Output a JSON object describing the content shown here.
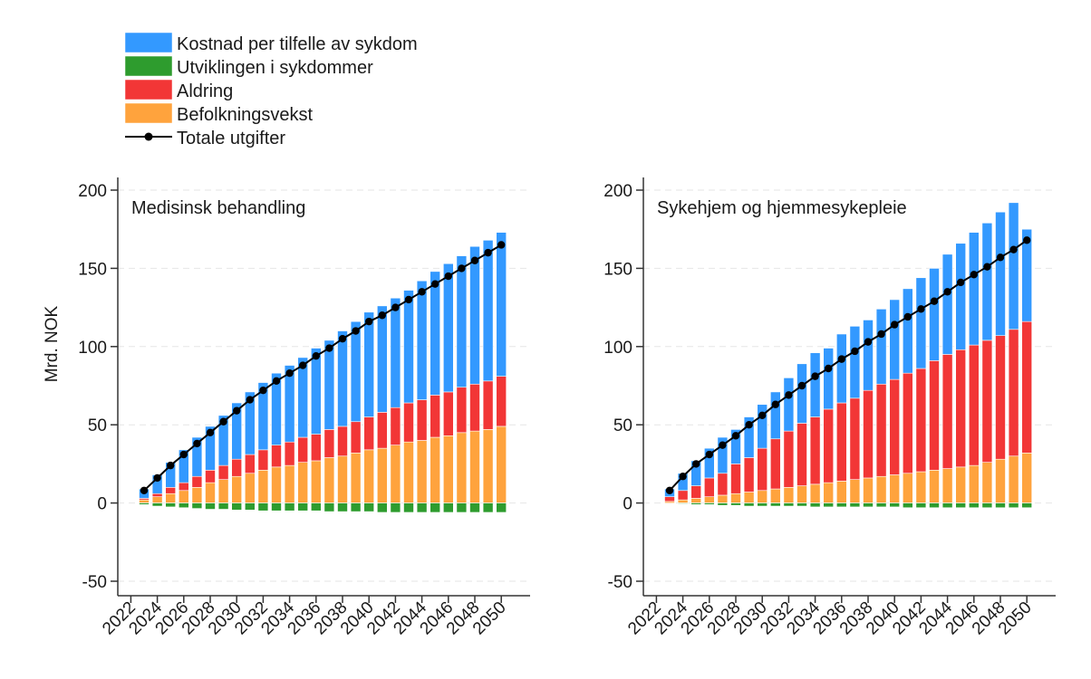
{
  "legend": {
    "items": [
      {
        "key": "cost",
        "label": "Kostnad per tilfelle av sykdom",
        "color": "#3399ff",
        "kind": "box"
      },
      {
        "key": "disease",
        "label": "Utviklingen i sykdommer",
        "color": "#2e9c2e",
        "kind": "box"
      },
      {
        "key": "aging",
        "label": "Aldring",
        "color": "#f23636",
        "kind": "box"
      },
      {
        "key": "pop",
        "label": "Befolkningsvekst",
        "color": "#ffa33d",
        "kind": "box"
      },
      {
        "key": "total",
        "label": "Totale utgifter",
        "color": "#000000",
        "kind": "line"
      }
    ]
  },
  "ylabel": "Mrd. NOK",
  "chart_data": [
    {
      "type": "bar",
      "stacked": true,
      "title": "Medisinsk behandling",
      "ylabel": "Mrd. NOK",
      "ylim": [
        -50,
        200
      ],
      "yticks": [
        -50,
        0,
        50,
        100,
        150,
        200
      ],
      "xtick_labels": [
        "2022",
        "2024",
        "2026",
        "2028",
        "2030",
        "2032",
        "2034",
        "2036",
        "2038",
        "2040",
        "2042",
        "2044",
        "2046",
        "2048",
        "2050"
      ],
      "x": [
        2023,
        2024,
        2025,
        2026,
        2027,
        2028,
        2029,
        2030,
        2031,
        2032,
        2033,
        2034,
        2035,
        2036,
        2037,
        2038,
        2039,
        2040,
        2041,
        2042,
        2043,
        2044,
        2045,
        2046,
        2047,
        2048,
        2049,
        2050
      ],
      "series": [
        {
          "name": "Befolkningsvekst",
          "key": "pop",
          "values": [
            2,
            4,
            6,
            8,
            10,
            13,
            15,
            17,
            19,
            21,
            23,
            24,
            26,
            27,
            29,
            30,
            32,
            34,
            35,
            37,
            39,
            40,
            42,
            43,
            45,
            46,
            47,
            49
          ]
        },
        {
          "name": "Aldring",
          "key": "aging",
          "values": [
            1,
            2,
            4,
            5,
            7,
            8,
            9,
            11,
            12,
            13,
            14,
            15,
            16,
            17,
            18,
            19,
            20,
            21,
            23,
            24,
            25,
            26,
            27,
            28,
            29,
            30,
            31,
            32
          ]
        },
        {
          "name": "Kostnad per tilfelle av sykdom",
          "key": "cost",
          "values": [
            6,
            12,
            16,
            21,
            25,
            28,
            32,
            36,
            40,
            43,
            46,
            49,
            51,
            55,
            57,
            61,
            64,
            67,
            68,
            70,
            72,
            76,
            79,
            82,
            84,
            88,
            90,
            92
          ]
        },
        {
          "name": "Utviklingen i sykdommer",
          "key": "disease",
          "values": [
            -1,
            -2,
            -2.5,
            -3,
            -3.5,
            -4,
            -4,
            -4.5,
            -4.5,
            -5,
            -5,
            -5,
            -5,
            -5,
            -5.5,
            -5.5,
            -5.5,
            -5.5,
            -6,
            -6,
            -6,
            -6,
            -6,
            -6,
            -6,
            -6,
            -6,
            -6
          ]
        }
      ],
      "total": [
        8,
        16,
        24,
        31,
        38,
        45,
        52,
        59,
        66,
        72,
        78,
        83,
        88,
        94,
        99,
        105,
        110,
        116,
        120,
        125,
        130,
        135,
        140,
        145,
        150,
        155,
        160,
        165
      ]
    },
    {
      "type": "bar",
      "stacked": true,
      "title": "Sykehjem og hjemmesykepleie",
      "ylabel": "",
      "ylim": [
        -50,
        200
      ],
      "yticks": [
        -50,
        0,
        50,
        100,
        150,
        200
      ],
      "xtick_labels": [
        "2022",
        "2024",
        "2026",
        "2028",
        "2030",
        "2032",
        "2034",
        "2036",
        "2038",
        "2040",
        "2042",
        "2044",
        "2046",
        "2048",
        "2050"
      ],
      "x": [
        2023,
        2024,
        2025,
        2026,
        2027,
        2028,
        2029,
        2030,
        2031,
        2032,
        2033,
        2034,
        2035,
        2036,
        2037,
        2038,
        2039,
        2040,
        2041,
        2042,
        2043,
        2044,
        2045,
        2046,
        2047,
        2048,
        2049,
        2050
      ],
      "series": [
        {
          "name": "Befolkningsvekst",
          "key": "pop",
          "values": [
            1,
            2,
            3,
            4,
            5,
            6,
            7,
            8,
            9,
            10,
            11,
            12,
            13,
            14,
            15,
            16,
            17,
            18,
            19,
            20,
            21,
            22,
            23,
            24,
            26,
            28,
            30,
            32
          ]
        },
        {
          "name": "Aldring",
          "key": "aging",
          "values": [
            3,
            6,
            8,
            12,
            14,
            19,
            22,
            27,
            32,
            36,
            40,
            43,
            47,
            50,
            52,
            56,
            59,
            61,
            64,
            66,
            70,
            73,
            75,
            77,
            78,
            79,
            81,
            84
          ]
        },
        {
          "name": "Kostnad per tilfelle av sykdom",
          "key": "cost",
          "values": [
            5,
            11,
            16,
            19,
            23,
            22,
            26,
            28,
            30,
            34,
            38,
            41,
            39,
            44,
            46,
            45,
            48,
            51,
            54,
            58,
            59,
            64,
            68,
            72,
            75,
            79,
            81,
            59
          ]
        },
        {
          "name": "Utviklingen i sykdommer",
          "key": "disease",
          "values": [
            0,
            -0.5,
            -1,
            -1,
            -1.5,
            -1.5,
            -2,
            -2,
            -2,
            -2,
            -2,
            -2.5,
            -2.5,
            -2.5,
            -2.5,
            -2.5,
            -2.5,
            -2.5,
            -3,
            -3,
            -3,
            -3,
            -3,
            -3,
            -3,
            -3,
            -3,
            -3
          ]
        }
      ],
      "total": [
        8,
        17,
        25,
        31,
        37,
        43,
        50,
        56,
        63,
        69,
        75,
        81,
        86,
        92,
        97,
        103,
        108,
        114,
        119,
        124,
        129,
        135,
        141,
        146,
        151,
        157,
        162,
        168
      ]
    }
  ]
}
